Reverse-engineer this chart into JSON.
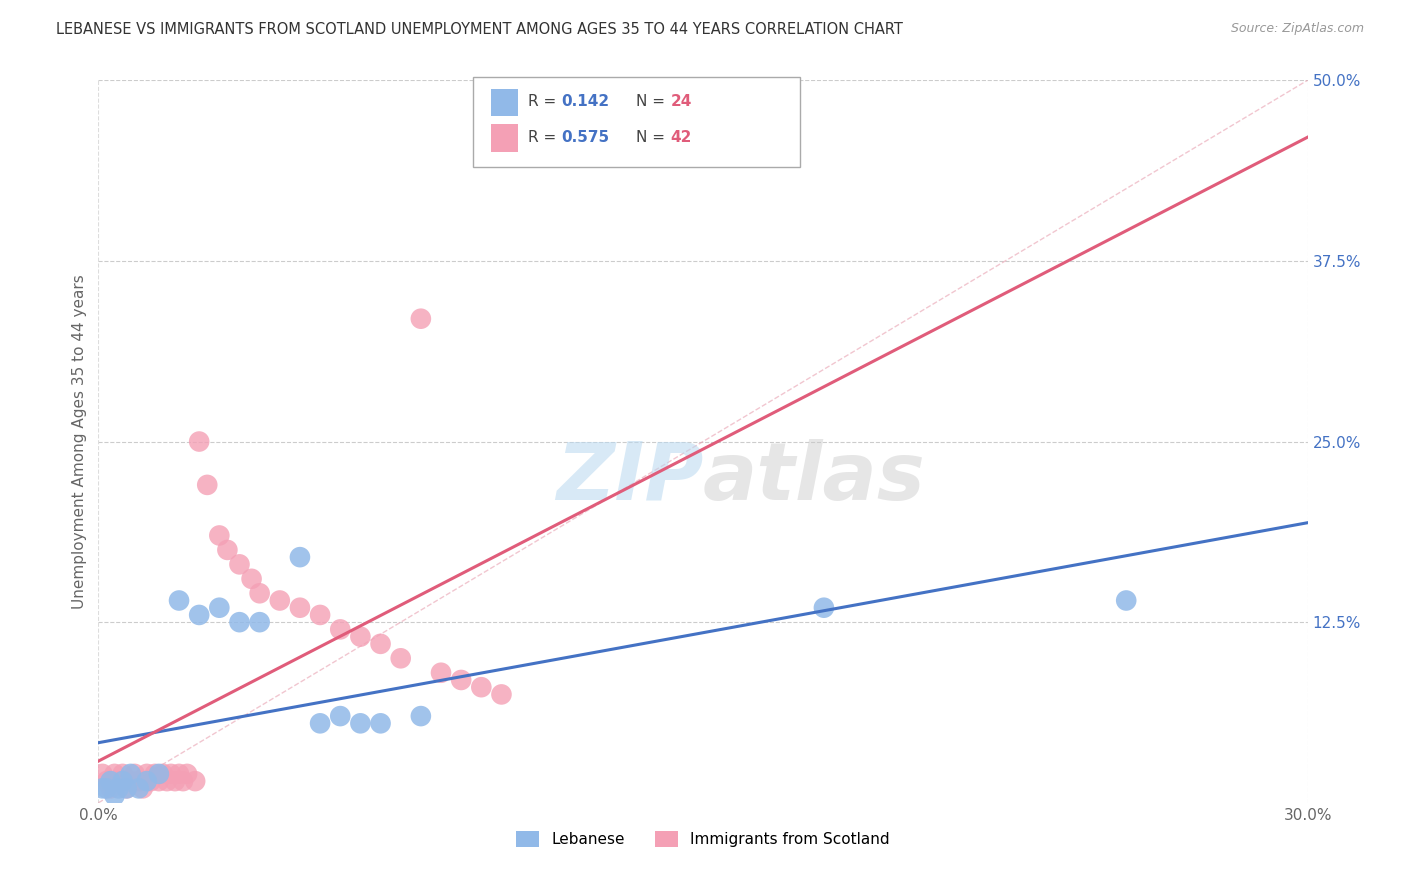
{
  "title": "LEBANESE VS IMMIGRANTS FROM SCOTLAND UNEMPLOYMENT AMONG AGES 35 TO 44 YEARS CORRELATION CHART",
  "source": "Source: ZipAtlas.com",
  "ylabel": "Unemployment Among Ages 35 to 44 years",
  "x_min": 0.0,
  "x_max": 0.3,
  "y_min": 0.0,
  "y_max": 0.5,
  "color_lebanese": "#91b9e8",
  "color_scotland": "#f4a0b5",
  "color_line_lebanese": "#4472c4",
  "color_line_scotland": "#e05c7a",
  "color_r_value": "#4472c4",
  "color_n_value": "#e05c7a",
  "watermark_zip": "ZIP",
  "watermark_atlas": "atlas",
  "r1": "0.142",
  "n1": "24",
  "r2": "0.575",
  "n2": "42",
  "leb_x": [
    0.001,
    0.002,
    0.003,
    0.004,
    0.005,
    0.006,
    0.007,
    0.008,
    0.01,
    0.012,
    0.015,
    0.02,
    0.025,
    0.03,
    0.035,
    0.04,
    0.05,
    0.055,
    0.06,
    0.065,
    0.07,
    0.08,
    0.18,
    0.255
  ],
  "leb_y": [
    0.01,
    0.01,
    0.015,
    0.005,
    0.01,
    0.015,
    0.01,
    0.02,
    0.01,
    0.015,
    0.02,
    0.14,
    0.13,
    0.135,
    0.125,
    0.125,
    0.17,
    0.055,
    0.06,
    0.055,
    0.055,
    0.06,
    0.135,
    0.14
  ],
  "sco_x": [
    0.001,
    0.002,
    0.003,
    0.004,
    0.005,
    0.006,
    0.007,
    0.008,
    0.009,
    0.01,
    0.011,
    0.012,
    0.013,
    0.014,
    0.015,
    0.016,
    0.017,
    0.018,
    0.019,
    0.02,
    0.021,
    0.022,
    0.024,
    0.025,
    0.027,
    0.03,
    0.032,
    0.035,
    0.038,
    0.04,
    0.045,
    0.05,
    0.055,
    0.06,
    0.065,
    0.07,
    0.075,
    0.08,
    0.085,
    0.09,
    0.095,
    0.1
  ],
  "sco_y": [
    0.02,
    0.015,
    0.01,
    0.02,
    0.015,
    0.02,
    0.01,
    0.015,
    0.02,
    0.015,
    0.01,
    0.02,
    0.015,
    0.02,
    0.015,
    0.02,
    0.015,
    0.02,
    0.015,
    0.02,
    0.015,
    0.02,
    0.015,
    0.25,
    0.22,
    0.185,
    0.175,
    0.165,
    0.155,
    0.145,
    0.14,
    0.135,
    0.13,
    0.12,
    0.115,
    0.11,
    0.1,
    0.335,
    0.09,
    0.085,
    0.08,
    0.075
  ]
}
